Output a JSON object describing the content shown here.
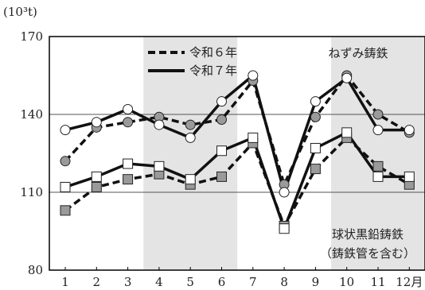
{
  "chart_data": {
    "type": "line",
    "unit_label": "(10³t)",
    "ylim": [
      80,
      170
    ],
    "y_ticks": [
      80,
      110,
      140,
      170
    ],
    "x_ticks": [
      "1",
      "2",
      "3",
      "4",
      "5",
      "6",
      "7",
      "8",
      "9",
      "10",
      "11",
      "12月"
    ],
    "grid": "horizontal lines at 110 and 140; shaded bands at months 4–6 and 10–12",
    "legend": [
      {
        "label": "令和６年",
        "style": "dashed"
      },
      {
        "label": "令和７年",
        "style": "solid"
      }
    ],
    "groups": [
      {
        "name": "ねずみ鋳鉄",
        "marker": "circle",
        "series": [
          {
            "legend_ref": "令和６年",
            "values": [
              122,
              135,
              137,
              139,
              136,
              138,
              153,
              113,
              139,
              155,
              140,
              133
            ]
          },
          {
            "legend_ref": "令和７年",
            "values": [
              134,
              137,
              142,
              136,
              131,
              145,
              155,
              110,
              145,
              154,
              134,
              134
            ]
          }
        ]
      },
      {
        "name": "球状黒鉛鋳鉄\n（鋳鉄管を含む）",
        "marker": "square",
        "series": [
          {
            "legend_ref": "令和６年",
            "values": [
              103,
              112,
              115,
              117,
              113,
              116,
              129,
              97,
              119,
              131,
              120,
              113
            ]
          },
          {
            "legend_ref": "令和７年",
            "values": [
              112,
              116,
              121,
              120,
              115,
              126,
              131,
              96,
              127,
              133,
              116,
              116
            ]
          }
        ]
      }
    ]
  }
}
